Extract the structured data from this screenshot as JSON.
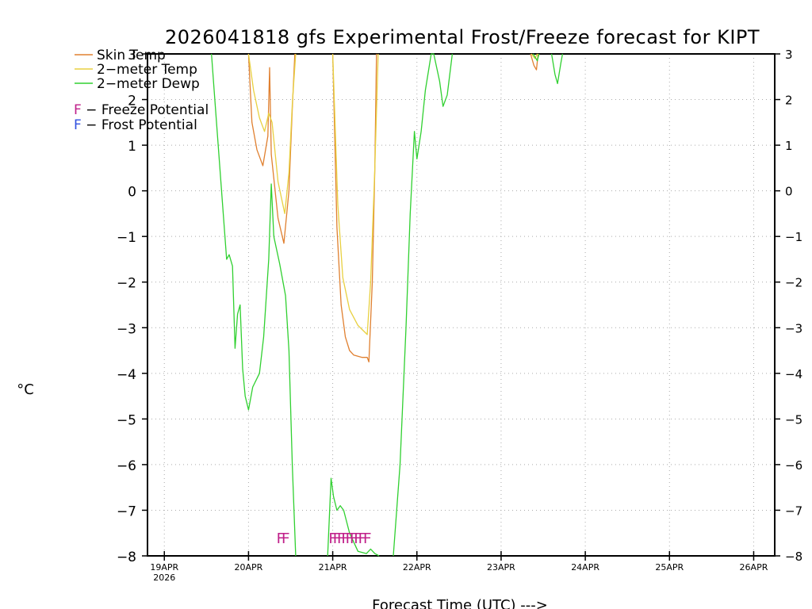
{
  "chart_data": {
    "type": "line",
    "title": "2026041818 gfs Experimental Frost/Freeze forecast for KIPT",
    "xlabel": "Forecast Time (UTC) --->",
    "ylabel": "°C",
    "ylim": [
      -8,
      3
    ],
    "xlim": [
      -0.2,
      7.25
    ],
    "yticks": [
      -8,
      -7,
      -6,
      -5,
      -4,
      -3,
      -2,
      -1,
      0,
      1,
      2,
      3
    ],
    "ytick_labels": [
      "−8",
      "−7",
      "−6",
      "−5",
      "−4",
      "−3",
      "−2",
      "−1",
      "0",
      "1",
      "2",
      "3"
    ],
    "xticks": [
      {
        "x": 0,
        "label": "19APR",
        "sub": "2026"
      },
      {
        "x": 1,
        "label": "20APR",
        "sub": ""
      },
      {
        "x": 2,
        "label": "21APR",
        "sub": ""
      },
      {
        "x": 3,
        "label": "22APR",
        "sub": ""
      },
      {
        "x": 4,
        "label": "23APR",
        "sub": ""
      },
      {
        "x": 5,
        "label": "24APR",
        "sub": ""
      },
      {
        "x": 6,
        "label": "25APR",
        "sub": ""
      },
      {
        "x": 7,
        "label": "26APR",
        "sub": ""
      }
    ],
    "grid": true,
    "legend": [
      {
        "label": "Skin Temp",
        "color": "#e08030"
      },
      {
        "label": "2−meter Temp",
        "color": "#e8d040"
      },
      {
        "label": "2−meter Dewp",
        "color": "#30d030"
      }
    ],
    "potential_legend": [
      {
        "label": "F − Freeze Potential",
        "color": "#c0208a"
      },
      {
        "label": "F − Frost Potential",
        "color": "#3050e0"
      }
    ],
    "series": [
      {
        "name": "Skin Temp",
        "color": "#e08030",
        "segments": [
          [
            [
              1.0,
              3.0
            ],
            [
              1.04,
              1.5
            ],
            [
              1.1,
              0.9
            ],
            [
              1.17,
              0.55
            ],
            [
              1.23,
              1.2
            ],
            [
              1.25,
              2.7
            ],
            [
              1.27,
              0.8
            ],
            [
              1.35,
              -0.6
            ],
            [
              1.42,
              -1.15
            ],
            [
              1.48,
              0.0
            ],
            [
              1.52,
              1.8
            ],
            [
              1.55,
              3.0
            ]
          ],
          [
            [
              2.0,
              3.0
            ],
            [
              2.05,
              -0.8
            ],
            [
              2.1,
              -2.5
            ],
            [
              2.15,
              -3.2
            ],
            [
              2.2,
              -3.5
            ],
            [
              2.25,
              -3.6
            ],
            [
              2.35,
              -3.65
            ],
            [
              2.41,
              -3.65
            ],
            [
              2.43,
              -3.75
            ],
            [
              2.47,
              -2.0
            ],
            [
              2.5,
              0.5
            ],
            [
              2.52,
              3.0
            ]
          ],
          [
            [
              4.35,
              3.0
            ],
            [
              4.39,
              2.75
            ],
            [
              4.42,
              2.65
            ],
            [
              4.44,
              3.0
            ]
          ]
        ]
      },
      {
        "name": "2-meter Temp",
        "color": "#e8d040",
        "segments": [
          [
            [
              1.0,
              3.0
            ],
            [
              1.06,
              2.2
            ],
            [
              1.13,
              1.6
            ],
            [
              1.19,
              1.3
            ],
            [
              1.24,
              1.7
            ],
            [
              1.28,
              1.5
            ],
            [
              1.35,
              0.2
            ],
            [
              1.43,
              -0.5
            ],
            [
              1.48,
              0.4
            ],
            [
              1.52,
              1.9
            ],
            [
              1.56,
              3.0
            ]
          ],
          [
            [
              2.0,
              3.0
            ],
            [
              2.06,
              -0.3
            ],
            [
              2.12,
              -1.9
            ],
            [
              2.2,
              -2.6
            ],
            [
              2.3,
              -2.95
            ],
            [
              2.41,
              -3.15
            ],
            [
              2.45,
              -2.0
            ],
            [
              2.5,
              0.5
            ],
            [
              2.54,
              3.0
            ]
          ],
          [
            [
              4.36,
              3.0
            ],
            [
              4.4,
              2.9
            ],
            [
              4.43,
              3.0
            ]
          ]
        ]
      },
      {
        "name": "2-meter Dewp",
        "color": "#30d030",
        "segments": [
          [
            [
              0.56,
              3.0
            ],
            [
              0.6,
              2.0
            ],
            [
              0.68,
              0.0
            ],
            [
              0.74,
              -1.5
            ],
            [
              0.77,
              -1.4
            ],
            [
              0.81,
              -1.65
            ],
            [
              0.84,
              -3.45
            ],
            [
              0.87,
              -2.7
            ],
            [
              0.9,
              -2.5
            ],
            [
              0.93,
              -3.9
            ],
            [
              0.96,
              -4.5
            ],
            [
              1.0,
              -4.8
            ],
            [
              1.05,
              -4.3
            ],
            [
              1.13,
              -4.0
            ],
            [
              1.18,
              -3.2
            ],
            [
              1.24,
              -1.5
            ],
            [
              1.27,
              0.15
            ],
            [
              1.3,
              -1.0
            ],
            [
              1.37,
              -1.6
            ],
            [
              1.44,
              -2.3
            ],
            [
              1.48,
              -3.5
            ],
            [
              1.52,
              -6.0
            ],
            [
              1.56,
              -8.0
            ]
          ],
          [
            [
              1.94,
              -8.0
            ],
            [
              1.98,
              -6.3
            ],
            [
              2.01,
              -6.7
            ],
            [
              2.05,
              -7.0
            ],
            [
              2.09,
              -6.9
            ],
            [
              2.13,
              -7.0
            ],
            [
              2.2,
              -7.5
            ],
            [
              2.3,
              -7.9
            ],
            [
              2.4,
              -7.95
            ],
            [
              2.45,
              -7.85
            ],
            [
              2.5,
              -7.95
            ],
            [
              2.55,
              -8.0
            ]
          ],
          [
            [
              2.72,
              -8.0
            ],
            [
              2.8,
              -6.0
            ],
            [
              2.87,
              -3.0
            ],
            [
              2.92,
              -0.5
            ],
            [
              2.97,
              1.3
            ],
            [
              3.0,
              0.7
            ],
            [
              3.05,
              1.3
            ],
            [
              3.1,
              2.2
            ],
            [
              3.17,
              3.0
            ],
            [
              3.2,
              3.0
            ],
            [
              3.27,
              2.4
            ],
            [
              3.31,
              1.85
            ],
            [
              3.36,
              2.1
            ],
            [
              3.42,
              3.0
            ]
          ],
          [
            [
              4.38,
              3.0
            ],
            [
              4.43,
              2.85
            ],
            [
              4.45,
              3.0
            ]
          ],
          [
            [
              4.6,
              3.0
            ],
            [
              4.64,
              2.55
            ],
            [
              4.67,
              2.35
            ],
            [
              4.71,
              2.8
            ],
            [
              4.73,
              3.0
            ]
          ]
        ]
      }
    ],
    "freeze_markers": [
      {
        "x": 1.38,
        "label": "F"
      },
      {
        "x": 1.44,
        "label": "F"
      },
      {
        "x": 2.0,
        "label": "F"
      },
      {
        "x": 2.05,
        "label": "F"
      },
      {
        "x": 2.1,
        "label": "F"
      },
      {
        "x": 2.15,
        "label": "F"
      },
      {
        "x": 2.2,
        "label": "F"
      },
      {
        "x": 2.25,
        "label": "F"
      },
      {
        "x": 2.3,
        "label": "F"
      },
      {
        "x": 2.35,
        "label": "F"
      },
      {
        "x": 2.41,
        "label": "F"
      }
    ],
    "freeze_marker_level": -7.6,
    "freeze_marker_color": "#c0208a"
  }
}
